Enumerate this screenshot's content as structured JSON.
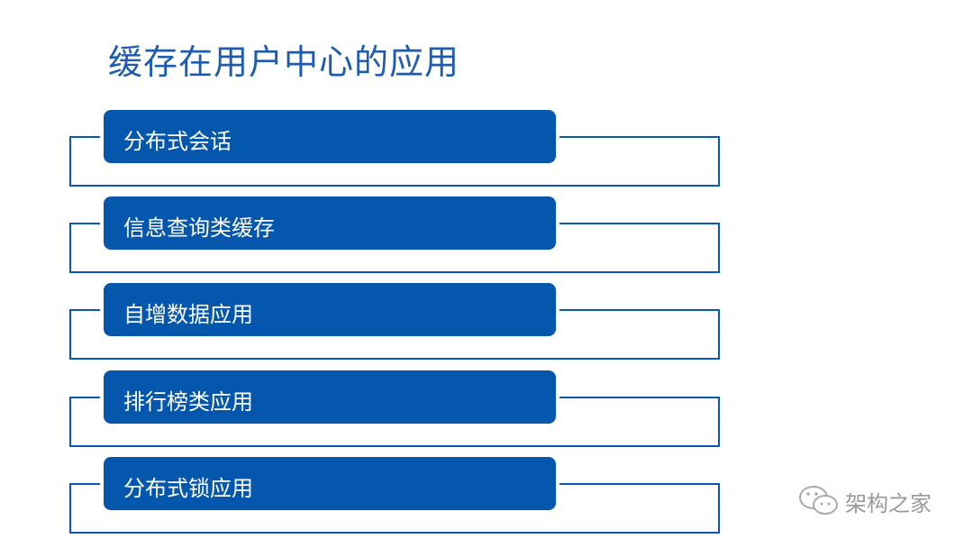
{
  "title": "缓存在用户中心的应用",
  "items": [
    {
      "label": "分布式会话"
    },
    {
      "label": "信息查询类缓存"
    },
    {
      "label": "自增数据应用"
    },
    {
      "label": "排行榜类应用"
    },
    {
      "label": "分布式锁应用"
    }
  ],
  "watermark": {
    "icon": "wechat-icon",
    "text": "架构之家"
  },
  "colors": {
    "accent": "#0557ad",
    "title": "#1d5cb0"
  }
}
